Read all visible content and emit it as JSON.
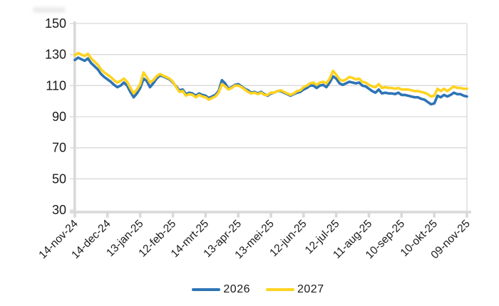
{
  "chart_data": {
    "type": "line",
    "title": "",
    "xlabel": "",
    "ylabel": "",
    "grid": "horizontal",
    "legend_position": "bottom-center",
    "ylim": [
      30,
      150
    ],
    "y_tick_labels": [
      150,
      130,
      110,
      90,
      70,
      50,
      30
    ],
    "x_tick_labels": [
      "14-nov-24",
      "14-dec-24",
      "13-jan-25",
      "12-feb-25",
      "14-mrt-25",
      "13-apr-25",
      "13-mei-25",
      "12-jun-25",
      "12-jul-25",
      "11-aug-25",
      "10-sep-25",
      "10-okt-25",
      "09-nov-25"
    ],
    "x_range_days": 360,
    "x_step_days": 3,
    "series": [
      {
        "name": "2026",
        "color": "#2E74B5",
        "values": [
          126.5,
          128,
          127,
          126,
          127.5,
          124.5,
          122.5,
          120.5,
          117.5,
          115.5,
          114,
          112.5,
          110.5,
          109,
          110,
          112,
          110,
          106,
          102.5,
          105,
          108.5,
          114.5,
          113,
          109,
          111.5,
          114.5,
          116.5,
          116,
          115,
          114,
          112,
          109.5,
          107,
          107.5,
          104.5,
          105.5,
          105,
          103.5,
          105,
          104,
          103.5,
          102,
          103,
          104,
          106.5,
          113.5,
          111.5,
          108,
          109,
          110.5,
          111,
          109.5,
          108,
          107,
          105.5,
          106,
          105,
          106,
          104.5,
          103.5,
          105,
          105.5,
          106.5,
          106.5,
          105.5,
          104.5,
          103.5,
          104.5,
          105.5,
          106,
          107.5,
          108.5,
          110,
          110,
          108.5,
          110,
          110.5,
          109,
          112,
          116,
          114.5,
          111.5,
          110.5,
          111.5,
          112.5,
          112,
          111.5,
          112,
          110,
          109.5,
          108,
          106.5,
          105.5,
          107.5,
          105,
          105.5,
          105,
          105,
          104.5,
          105.5,
          104,
          104,
          103.5,
          103,
          102.5,
          102.5,
          101.5,
          101,
          99.5,
          98,
          98.5,
          103.5,
          102.5,
          104,
          103,
          104,
          105.5,
          104.5,
          104.5,
          103.5,
          103
        ]
      },
      {
        "name": "2027",
        "color": "#FFD320",
        "values": [
          129.5,
          131,
          130,
          129,
          130.5,
          127.5,
          125.5,
          123.5,
          120.5,
          118.5,
          117,
          115.5,
          113.5,
          112,
          113,
          114.5,
          112.5,
          108.5,
          105,
          107.5,
          111,
          118.5,
          115.5,
          112,
          113.5,
          116,
          117.5,
          116.5,
          115.5,
          114.5,
          112.5,
          109,
          106,
          106.5,
          103.5,
          104.5,
          104,
          102.5,
          104,
          103,
          102.5,
          101,
          102,
          103,
          105.5,
          111,
          109.5,
          107.5,
          108.5,
          110,
          110,
          109,
          107.5,
          106,
          105,
          105.5,
          104.5,
          105.5,
          104,
          104,
          105.5,
          105.5,
          106.5,
          107,
          106,
          105,
          104,
          105,
          106.5,
          107,
          109,
          110,
          111.5,
          112,
          110.5,
          112,
          112.5,
          111.5,
          114.5,
          119.5,
          117,
          114,
          113,
          114,
          115.5,
          115,
          114,
          114.5,
          112.5,
          112,
          110.5,
          109.5,
          109,
          111,
          108.5,
          109,
          108.5,
          108.5,
          108,
          108.5,
          107.5,
          107.5,
          107.5,
          107,
          106.5,
          106.5,
          106,
          105.5,
          104.5,
          103,
          103.5,
          108,
          106.5,
          108,
          106.5,
          108,
          109.5,
          108.5,
          108.5,
          108,
          108
        ]
      }
    ]
  },
  "colors": {
    "background": "#FFFFFF",
    "grid": "#D9D9D9",
    "axis": "#D9D9D9",
    "tick_label": "#1A1A1A"
  }
}
